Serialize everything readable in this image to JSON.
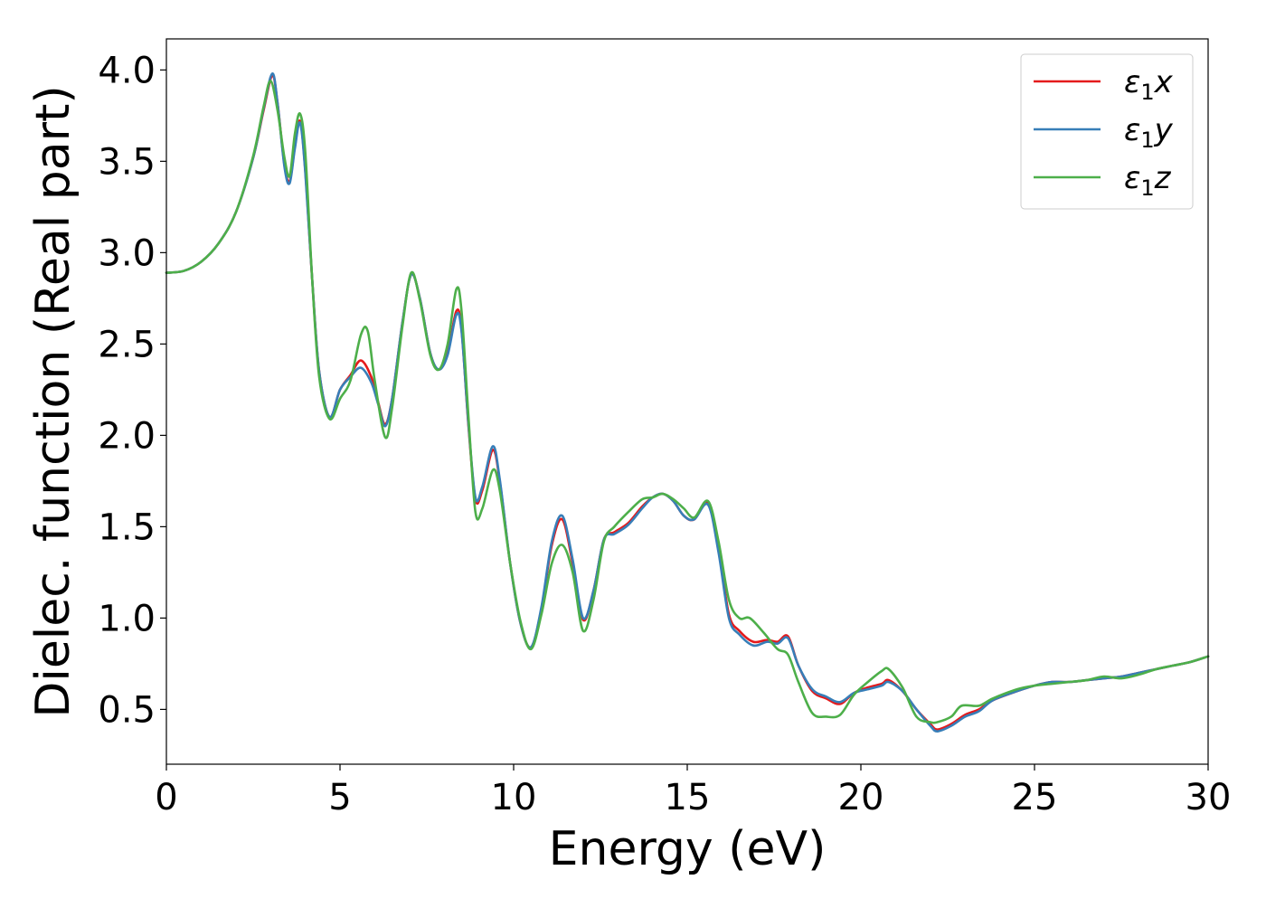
{
  "chart_data": {
    "type": "line",
    "xlabel": "Energy (eV)",
    "ylabel": "Dielec. function (Real part)",
    "xlim": [
      0,
      30
    ],
    "ylim": [
      0.2,
      4.17
    ],
    "xticks": [
      0,
      5,
      10,
      15,
      20,
      25,
      30
    ],
    "xtick_labels": [
      "0",
      "5",
      "10",
      "15",
      "20",
      "25",
      "30"
    ],
    "yticks": [
      0.5,
      1.0,
      1.5,
      2.0,
      2.5,
      3.0,
      3.5,
      4.0
    ],
    "ytick_labels": [
      "0.5",
      "1.0",
      "1.5",
      "2.0",
      "2.5",
      "3.0",
      "3.5",
      "4.0"
    ],
    "grid": false,
    "legend_position": "top-right",
    "series": [
      {
        "name": "ε₁x",
        "legend": {
          "symbol": "ε",
          "sub": "1",
          "var": "x"
        },
        "color": "#e41a1c",
        "x": [
          0,
          0.5,
          1.0,
          1.5,
          2.0,
          2.5,
          2.8,
          3.05,
          3.2,
          3.4,
          3.55,
          3.7,
          3.85,
          4.0,
          4.2,
          4.4,
          4.7,
          5.0,
          5.3,
          5.6,
          5.9,
          6.1,
          6.3,
          6.5,
          6.8,
          7.05,
          7.3,
          7.6,
          7.85,
          8.1,
          8.35,
          8.5,
          8.7,
          8.9,
          9.1,
          9.4,
          9.6,
          9.9,
          10.2,
          10.5,
          10.8,
          11.1,
          11.4,
          11.7,
          12.0,
          12.3,
          12.6,
          12.9,
          13.3,
          13.7,
          14.0,
          14.3,
          14.6,
          14.9,
          15.2,
          15.6,
          15.9,
          16.2,
          16.5,
          16.9,
          17.3,
          17.6,
          17.9,
          18.2,
          18.6,
          19.0,
          19.4,
          19.8,
          20.2,
          20.6,
          20.8,
          21.2,
          21.6,
          22.0,
          22.2,
          22.6,
          23.0,
          23.4,
          23.8,
          24.5,
          25.0,
          25.5,
          26.0,
          26.5,
          27.0,
          27.5,
          28.0,
          28.5,
          29.0,
          29.5,
          30.0
        ],
        "values": [
          2.89,
          2.9,
          2.95,
          3.05,
          3.22,
          3.52,
          3.78,
          3.97,
          3.82,
          3.48,
          3.39,
          3.58,
          3.72,
          3.45,
          2.85,
          2.35,
          2.1,
          2.25,
          2.33,
          2.41,
          2.32,
          2.18,
          2.06,
          2.2,
          2.62,
          2.88,
          2.75,
          2.45,
          2.36,
          2.45,
          2.68,
          2.58,
          2.05,
          1.65,
          1.7,
          1.92,
          1.75,
          1.3,
          0.97,
          0.84,
          1.05,
          1.4,
          1.54,
          1.3,
          0.99,
          1.15,
          1.43,
          1.47,
          1.52,
          1.61,
          1.66,
          1.68,
          1.64,
          1.56,
          1.54,
          1.63,
          1.38,
          1.02,
          0.93,
          0.87,
          0.88,
          0.87,
          0.9,
          0.74,
          0.6,
          0.56,
          0.53,
          0.59,
          0.62,
          0.64,
          0.66,
          0.6,
          0.5,
          0.42,
          0.39,
          0.42,
          0.47,
          0.5,
          0.55,
          0.6,
          0.63,
          0.65,
          0.65,
          0.66,
          0.67,
          0.68,
          0.7,
          0.72,
          0.74,
          0.76,
          0.79
        ]
      },
      {
        "name": "ε₁y",
        "legend": {
          "symbol": "ε",
          "sub": "1",
          "var": "y"
        },
        "color": "#377eb8",
        "x": [
          0,
          0.5,
          1.0,
          1.5,
          2.0,
          2.5,
          2.8,
          3.05,
          3.2,
          3.4,
          3.55,
          3.7,
          3.85,
          4.0,
          4.2,
          4.4,
          4.7,
          5.0,
          5.3,
          5.6,
          5.9,
          6.1,
          6.3,
          6.5,
          6.8,
          7.05,
          7.3,
          7.6,
          7.85,
          8.1,
          8.35,
          8.5,
          8.7,
          8.9,
          9.1,
          9.4,
          9.6,
          9.9,
          10.2,
          10.5,
          10.8,
          11.1,
          11.4,
          11.7,
          12.0,
          12.3,
          12.6,
          12.9,
          13.3,
          13.7,
          14.0,
          14.3,
          14.6,
          14.9,
          15.2,
          15.6,
          15.9,
          16.2,
          16.5,
          16.9,
          17.3,
          17.6,
          17.9,
          18.2,
          18.6,
          19.0,
          19.4,
          19.8,
          20.2,
          20.6,
          20.8,
          21.2,
          21.6,
          22.0,
          22.2,
          22.6,
          23.0,
          23.4,
          23.8,
          24.5,
          25.0,
          25.5,
          26.0,
          26.5,
          27.0,
          27.5,
          28.0,
          28.5,
          29.0,
          29.5,
          30.0
        ],
        "values": [
          2.89,
          2.9,
          2.95,
          3.05,
          3.22,
          3.52,
          3.79,
          3.98,
          3.82,
          3.47,
          3.38,
          3.57,
          3.71,
          3.44,
          2.85,
          2.35,
          2.1,
          2.25,
          2.32,
          2.37,
          2.29,
          2.17,
          2.05,
          2.2,
          2.62,
          2.88,
          2.75,
          2.45,
          2.36,
          2.44,
          2.66,
          2.57,
          2.06,
          1.66,
          1.72,
          1.94,
          1.76,
          1.3,
          0.97,
          0.84,
          1.06,
          1.42,
          1.56,
          1.32,
          1.0,
          1.15,
          1.43,
          1.46,
          1.51,
          1.6,
          1.66,
          1.68,
          1.64,
          1.56,
          1.54,
          1.62,
          1.36,
          1.0,
          0.91,
          0.85,
          0.87,
          0.86,
          0.89,
          0.74,
          0.61,
          0.57,
          0.54,
          0.59,
          0.61,
          0.63,
          0.65,
          0.6,
          0.5,
          0.41,
          0.38,
          0.41,
          0.46,
          0.49,
          0.55,
          0.6,
          0.63,
          0.65,
          0.65,
          0.66,
          0.67,
          0.68,
          0.7,
          0.72,
          0.74,
          0.76,
          0.79
        ]
      },
      {
        "name": "ε₁z",
        "legend": {
          "symbol": "ε",
          "sub": "1",
          "var": "z"
        },
        "color": "#4daf4a",
        "x": [
          0,
          0.5,
          1.0,
          1.5,
          2.0,
          2.5,
          2.8,
          3.0,
          3.2,
          3.4,
          3.55,
          3.7,
          3.85,
          4.0,
          4.2,
          4.4,
          4.7,
          5.0,
          5.3,
          5.6,
          5.8,
          6.0,
          6.3,
          6.5,
          6.8,
          7.05,
          7.3,
          7.6,
          7.85,
          8.1,
          8.35,
          8.5,
          8.7,
          8.9,
          9.1,
          9.4,
          9.6,
          9.9,
          10.2,
          10.5,
          10.8,
          11.1,
          11.4,
          11.7,
          12.0,
          12.3,
          12.6,
          12.9,
          13.3,
          13.7,
          14.0,
          14.3,
          14.6,
          14.9,
          15.2,
          15.6,
          15.9,
          16.2,
          16.5,
          16.8,
          17.2,
          17.6,
          17.9,
          18.2,
          18.6,
          19.0,
          19.4,
          19.8,
          20.2,
          20.6,
          20.8,
          21.2,
          21.6,
          22.0,
          22.2,
          22.6,
          22.9,
          23.4,
          23.8,
          24.5,
          25.0,
          25.5,
          26.0,
          26.5,
          27.0,
          27.5,
          28.0,
          28.5,
          29.0,
          29.5,
          30.0
        ],
        "values": [
          2.89,
          2.9,
          2.95,
          3.05,
          3.22,
          3.53,
          3.8,
          3.94,
          3.78,
          3.52,
          3.42,
          3.65,
          3.76,
          3.55,
          2.85,
          2.32,
          2.09,
          2.2,
          2.3,
          2.55,
          2.57,
          2.3,
          1.99,
          2.15,
          2.6,
          2.89,
          2.74,
          2.44,
          2.36,
          2.5,
          2.8,
          2.68,
          2.1,
          1.58,
          1.6,
          1.81,
          1.7,
          1.3,
          0.98,
          0.83,
          1.02,
          1.3,
          1.4,
          1.25,
          0.93,
          1.1,
          1.42,
          1.5,
          1.58,
          1.65,
          1.66,
          1.68,
          1.65,
          1.6,
          1.55,
          1.64,
          1.42,
          1.1,
          1.0,
          1.0,
          0.92,
          0.83,
          0.8,
          0.65,
          0.48,
          0.46,
          0.47,
          0.58,
          0.65,
          0.71,
          0.72,
          0.62,
          0.46,
          0.43,
          0.43,
          0.46,
          0.52,
          0.52,
          0.56,
          0.61,
          0.63,
          0.64,
          0.65,
          0.66,
          0.68,
          0.67,
          0.69,
          0.72,
          0.74,
          0.76,
          0.79
        ]
      }
    ]
  }
}
